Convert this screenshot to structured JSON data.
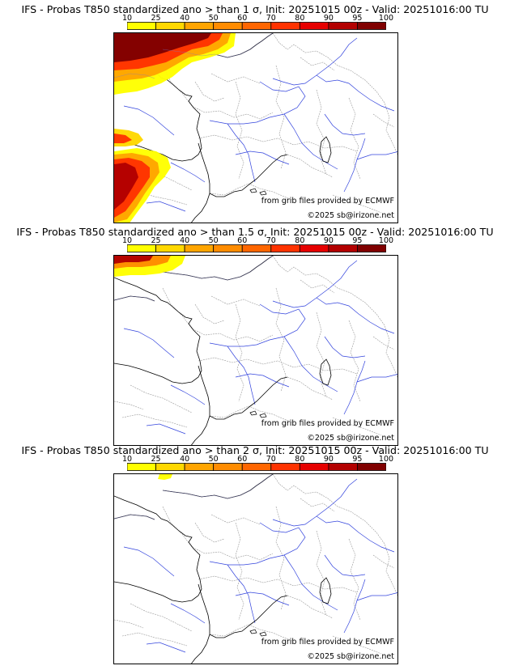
{
  "colorbar": {
    "ticks": [
      "10",
      "25",
      "40",
      "50",
      "60",
      "70",
      "80",
      "90",
      "95",
      "100"
    ],
    "colors": [
      "#ffff00",
      "#ffd800",
      "#ffa500",
      "#ff8c00",
      "#ff6600",
      "#ff3300",
      "#e60000",
      "#b30000",
      "#800000"
    ],
    "border_color": "#000000"
  },
  "panels": [
    {
      "title": "IFS - Probas T850  standardized ano > than 1 σ, Init: 20251015 00z - Valid: 20251016:00 TU",
      "threshold_sigma": 1
    },
    {
      "title": "IFS - Probas T850  standardized ano > than 1.5 σ, Init: 20251015 00z - Valid: 20251016:00 TU",
      "threshold_sigma": 1.5
    },
    {
      "title": "IFS - Probas T850  standardized ano > than 2 σ, Init: 20251015 00z - Valid: 20251016:00 TU",
      "threshold_sigma": 2
    }
  ],
  "map": {
    "credit_source": "from grib files provided by ECMWF",
    "credit_copyright": "©2025 sb@irizone.net",
    "river_color": "#3344dd",
    "border_color": "#999999",
    "coast_color": "#000000"
  }
}
